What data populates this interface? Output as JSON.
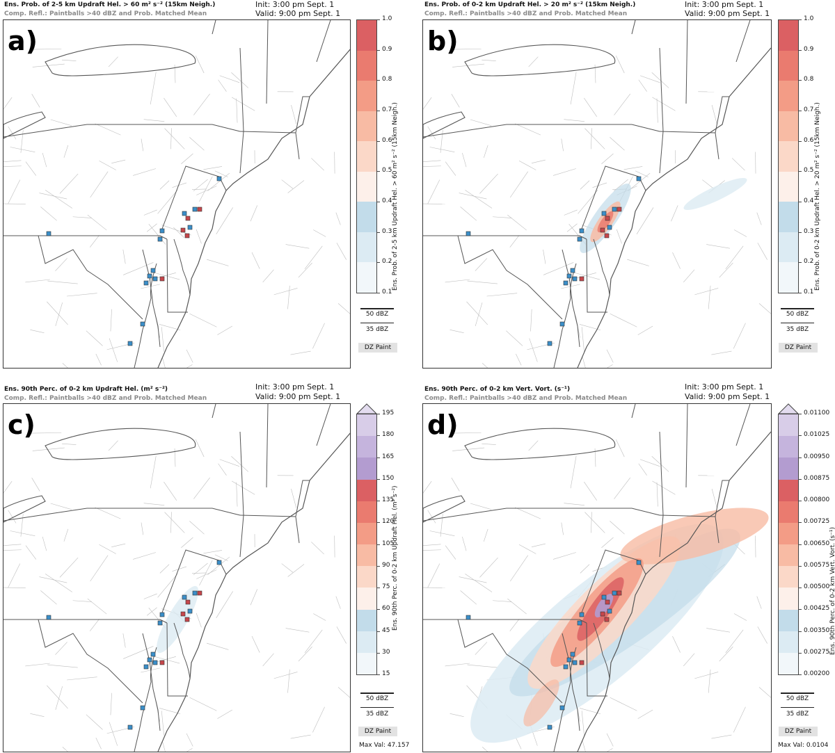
{
  "panels": [
    {
      "id": "a",
      "letter": "a)",
      "title": "Ens. Prob. of 2-5 km Updraft Hel. > 60 m² s⁻² (15km Neigh.)",
      "subtitle": "Comp. Refl.: Paintballs >40 dBZ and Prob. Matched Mean",
      "init": "Init: 3:00 pm Sept. 1",
      "valid": "Valid: 9:00 pm Sept. 1",
      "colorbar_label": "Ens. Prob. of 2-5 km Updraft Hel. > 60 m² s⁻² (15km Neigh.)",
      "ticks": [
        "1.0",
        "0.9",
        "0.8",
        "0.7",
        "0.6",
        "0.5",
        "0.4",
        "0.3",
        "0.2",
        "0.1"
      ],
      "legend_50": "50 dBZ",
      "legend_35": "35 dBZ",
      "dz_button": "DZ Paint",
      "max_val": ""
    },
    {
      "id": "b",
      "letter": "b)",
      "title": "Ens. Prob. of 0-2 km Updraft Hel. > 20 m² s⁻² (15km Neigh.)",
      "subtitle": "Comp. Refl.: Paintballs >40 dBZ and Prob. Matched Mean",
      "init": "Init: 3:00 pm Sept. 1",
      "valid": "Valid: 9:00 pm Sept. 1",
      "colorbar_label": "Ens. Prob. of 0-2 km Updraft Hel. > 20 m² s⁻² (15km Neigh.)",
      "ticks": [
        "1.0",
        "0.9",
        "0.8",
        "0.7",
        "0.6",
        "0.5",
        "0.4",
        "0.3",
        "0.2",
        "0.1"
      ],
      "legend_50": "50 dBZ",
      "legend_35": "35 dBZ",
      "dz_button": "DZ Paint",
      "max_val": ""
    },
    {
      "id": "c",
      "letter": "c)",
      "title": "Ens. 90th Perc. of 0-2 km Updraft Hel. (m² s⁻²)",
      "subtitle": "Comp. Refl.: Paintballs >40 dBZ and Prob. Matched Mean",
      "init": "Init: 3:00 pm Sept. 1",
      "valid": "Valid: 9:00 pm Sept. 1",
      "colorbar_label": "Ens. 90th Perc. of 0-2 km Updraft Hel. (m² s⁻²)",
      "ticks": [
        "195",
        "180",
        "165",
        "150",
        "135",
        "120",
        "105",
        "90",
        "75",
        "60",
        "45",
        "30",
        "15"
      ],
      "legend_50": "50 dBZ",
      "legend_35": "35 dBZ",
      "dz_button": "DZ Paint",
      "max_val": "Max Val: 47.157"
    },
    {
      "id": "d",
      "letter": "d)",
      "title": "Ens. 90th Perc. of 0-2 km Vert. Vort. (s⁻¹)",
      "subtitle": "Comp. Refl.: Paintballs >40 dBZ and Prob. Matched Mean",
      "init": "Init: 3:00 pm Sept. 1",
      "valid": "Valid: 9:00 pm Sept. 1",
      "colorbar_label": "Ens. 90th Perc. of 0-2 km Vert. Vort. (s⁻¹)",
      "ticks": [
        "0.01100",
        "0.01025",
        "0.00950",
        "0.00875",
        "0.00800",
        "0.00725",
        "0.00650",
        "0.00575",
        "0.00500",
        "0.00425",
        "0.00350",
        "0.00275",
        "0.00200"
      ],
      "legend_50": "50 dBZ",
      "legend_35": "35 dBZ",
      "dz_button": "DZ Paint",
      "max_val": "Max Val: 0.0104"
    }
  ],
  "colors": {
    "prob_scale": [
      "#f2f7fa",
      "#dcebf3",
      "#c2dcea",
      "#fdf0ea",
      "#fbd8c8",
      "#f8bba4",
      "#f39c86",
      "#ea7b6f",
      "#db6063"
    ],
    "perc_scale": [
      "#f2f7fa",
      "#dcebf3",
      "#c2dcea",
      "#fdf0ea",
      "#fbd8c8",
      "#f8bba4",
      "#f39c86",
      "#ea7b6f",
      "#db6063",
      "#b39cd0",
      "#c5b4dd",
      "#d8cde8"
    ],
    "state_border": "#555555",
    "county_border": "#bdbdbd"
  }
}
